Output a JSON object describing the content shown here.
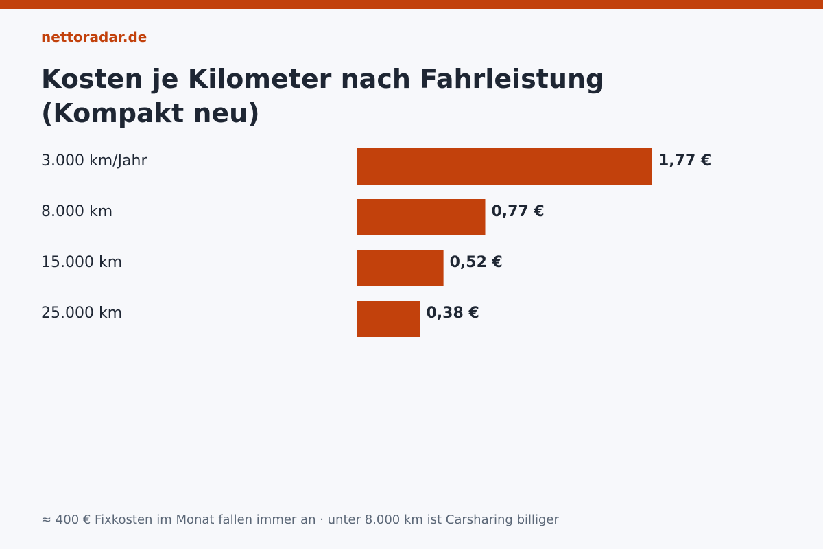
{
  "brand": "nettoradar.de",
  "title": "Kosten je Kilometer nach Fahrleistung (Kompakt neu)",
  "footnote": "≈ 400 € Fixkosten im Monat fallen immer an · unter 8.000 km ist Carsharing billiger",
  "colors": {
    "accent": "#c2410c",
    "text": "#1e2633",
    "muted": "#5b6777",
    "background": "#f7f8fb"
  },
  "chart_data": {
    "type": "bar",
    "orientation": "horizontal",
    "categories": [
      "3.000 km/Jahr",
      "8.000 km",
      "15.000 km",
      "25.000 km"
    ],
    "values": [
      1.77,
      0.77,
      0.52,
      0.38
    ],
    "value_labels": [
      "1,77 €",
      "0,77 €",
      "0,52 €",
      "0,38 €"
    ],
    "unit": "€"
  }
}
